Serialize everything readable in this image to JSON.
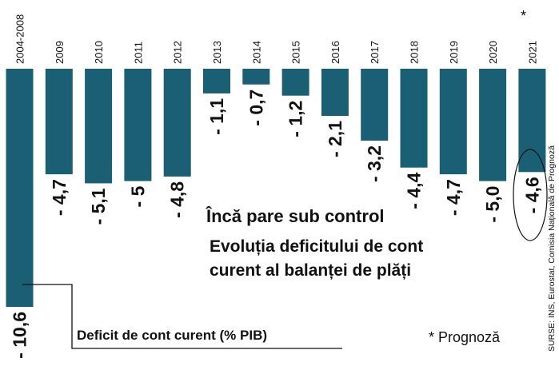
{
  "chart_data": {
    "type": "bar",
    "title": "Încă pare sub control",
    "subtitle_line1": "Evoluția deficitului de cont",
    "subtitle_line2": "curent al balanței de plăți",
    "series_label": "Deficit de cont curent (% PIB)",
    "categories": [
      "2004-2008",
      "2009",
      "2010",
      "2011",
      "2012",
      "2013",
      "2014",
      "2015",
      "2016",
      "2017",
      "2018",
      "2019",
      "2020",
      "2021"
    ],
    "values": [
      -10.6,
      -4.7,
      -5.1,
      -5.0,
      -4.8,
      -1.1,
      -0.7,
      -1.2,
      -2.1,
      -3.2,
      -4.4,
      -4.7,
      -5.0,
      -4.6
    ],
    "value_labels": [
      "- 10,6",
      "- 4,7",
      "- 5,1",
      "- 5",
      "- 4,8",
      "- 1,1",
      "- 0,7",
      "- 1,2",
      "- 2,1",
      "- 3,2",
      "- 4,4",
      "- 4,7",
      "- 5,0",
      "- 4,6"
    ],
    "forecast_marker": "*",
    "forecast_note": "* Prognoză",
    "source": "SURSE: INS, Eurostat, Comisia Națională de Prognoză",
    "ylim": [
      -10.6,
      0
    ],
    "colors": {
      "bar": "#1b5f74",
      "text": "#111111"
    }
  }
}
